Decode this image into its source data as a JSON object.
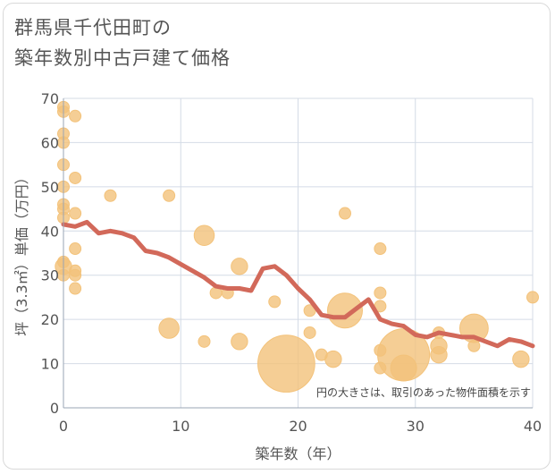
{
  "title": {
    "line1": "群馬県千代田町の",
    "line2": "築年数別中古戸建て価格"
  },
  "chart_data": {
    "type": "scatter",
    "title": "群馬県千代田町の 築年数別中古戸建て価格",
    "xlabel": "築年数（年）",
    "ylabel": "坪（3.3㎡）単価（万円）",
    "xlim": [
      0,
      40
    ],
    "ylim": [
      0,
      70
    ],
    "xticks": [
      0,
      10,
      20,
      30,
      40
    ],
    "yticks": [
      0,
      10,
      20,
      30,
      40,
      50,
      60,
      70
    ],
    "grid": true,
    "annotation": "円の大きさは、取引のあった物件面積を示す",
    "colors": {
      "bubble": "#f3c27a",
      "line": "#d2695a",
      "grid": "#d4dbe6"
    },
    "series": [
      {
        "kind": "bubble",
        "points": [
          {
            "x": 0,
            "y": 68,
            "size": 1
          },
          {
            "x": 0,
            "y": 67,
            "size": 1
          },
          {
            "x": 0,
            "y": 62,
            "size": 1
          },
          {
            "x": 0,
            "y": 60,
            "size": 1
          },
          {
            "x": 0,
            "y": 55,
            "size": 1
          },
          {
            "x": 0,
            "y": 50,
            "size": 1
          },
          {
            "x": 0,
            "y": 46,
            "size": 1
          },
          {
            "x": 0,
            "y": 45,
            "size": 1
          },
          {
            "x": 0,
            "y": 43,
            "size": 1
          },
          {
            "x": 0,
            "y": 33,
            "size": 1
          },
          {
            "x": 0,
            "y": 32,
            "size": 2
          },
          {
            "x": 0,
            "y": 30,
            "size": 1
          },
          {
            "x": 1,
            "y": 66,
            "size": 1
          },
          {
            "x": 1,
            "y": 52,
            "size": 1
          },
          {
            "x": 1,
            "y": 44,
            "size": 1
          },
          {
            "x": 1,
            "y": 36,
            "size": 1
          },
          {
            "x": 1,
            "y": 31,
            "size": 1
          },
          {
            "x": 1,
            "y": 30,
            "size": 1
          },
          {
            "x": 1,
            "y": 27,
            "size": 1
          },
          {
            "x": 4,
            "y": 48,
            "size": 1
          },
          {
            "x": 9,
            "y": 48,
            "size": 1
          },
          {
            "x": 9,
            "y": 18,
            "size": 3
          },
          {
            "x": 12,
            "y": 39,
            "size": 3
          },
          {
            "x": 12,
            "y": 15,
            "size": 1
          },
          {
            "x": 13,
            "y": 26,
            "size": 1
          },
          {
            "x": 14,
            "y": 26,
            "size": 1
          },
          {
            "x": 15,
            "y": 32,
            "size": 2
          },
          {
            "x": 15,
            "y": 15,
            "size": 2
          },
          {
            "x": 18,
            "y": 24,
            "size": 1
          },
          {
            "x": 19,
            "y": 10,
            "size": 24
          },
          {
            "x": 21,
            "y": 22,
            "size": 1
          },
          {
            "x": 21,
            "y": 17,
            "size": 1
          },
          {
            "x": 22,
            "y": 12,
            "size": 1
          },
          {
            "x": 23,
            "y": 11,
            "size": 2
          },
          {
            "x": 24,
            "y": 44,
            "size": 1
          },
          {
            "x": 24,
            "y": 22,
            "size": 9
          },
          {
            "x": 27,
            "y": 36,
            "size": 1
          },
          {
            "x": 27,
            "y": 26,
            "size": 1
          },
          {
            "x": 27,
            "y": 23,
            "size": 1
          },
          {
            "x": 27,
            "y": 13,
            "size": 1
          },
          {
            "x": 27,
            "y": 9,
            "size": 1
          },
          {
            "x": 29,
            "y": 12,
            "size": 20
          },
          {
            "x": 29,
            "y": 9,
            "size": 5
          },
          {
            "x": 32,
            "y": 17,
            "size": 1
          },
          {
            "x": 32,
            "y": 14,
            "size": 2
          },
          {
            "x": 32,
            "y": 12,
            "size": 2
          },
          {
            "x": 35,
            "y": 18,
            "size": 6
          },
          {
            "x": 35,
            "y": 14,
            "size": 1
          },
          {
            "x": 39,
            "y": 11,
            "size": 2
          },
          {
            "x": 40,
            "y": 25,
            "size": 1
          }
        ]
      },
      {
        "kind": "line",
        "x": [
          0,
          1,
          2,
          3,
          4,
          5,
          6,
          7,
          8,
          9,
          10,
          11,
          12,
          13,
          14,
          15,
          16,
          17,
          18,
          19,
          20,
          21,
          22,
          23,
          24,
          25,
          26,
          27,
          28,
          29,
          30,
          31,
          32,
          33,
          34,
          35,
          36,
          37,
          38,
          39,
          40
        ],
        "y": [
          41.5,
          41,
          42,
          39.5,
          40,
          39.5,
          38.5,
          35.5,
          35,
          34,
          32.5,
          31,
          29.5,
          27.5,
          27,
          27,
          26.5,
          31.5,
          32,
          30,
          27,
          24.5,
          21,
          20.5,
          20.5,
          22.5,
          24.5,
          20,
          19,
          18.5,
          16.5,
          16,
          17,
          16.5,
          16,
          16,
          15,
          14,
          15.5,
          15,
          14
        ]
      }
    ]
  }
}
